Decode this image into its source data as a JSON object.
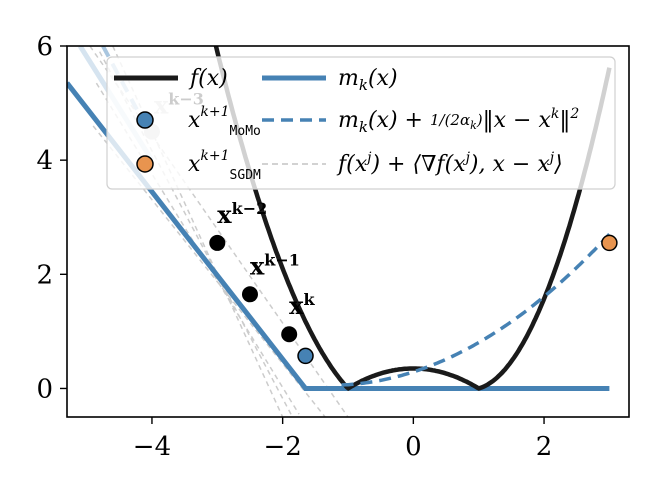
{
  "chart_data": {
    "type": "line",
    "xlim": [
      -5.3,
      3.3
    ],
    "ylim": [
      -0.5,
      6
    ],
    "x_ticks": [
      -4,
      -2,
      0,
      2
    ],
    "x_tick_labels": [
      "−4",
      "−2",
      "0",
      "2"
    ],
    "y_ticks": [
      0,
      2,
      4,
      6
    ],
    "y_tick_labels": [
      "0",
      "2",
      "4",
      "6"
    ],
    "grid": false,
    "legend_placement": "top-right",
    "colors": {
      "f": "#1a1a1a",
      "model": "#4682b4",
      "prox": "#4682b4",
      "tangent": "#cccccc",
      "momo": "#4682b4",
      "sgdm": "#e8944f"
    },
    "series": [
      {
        "name": "f(x)",
        "key": "f",
        "style": "solid"
      },
      {
        "name": "m_k(x)",
        "key": "model",
        "style": "solid"
      },
      {
        "name": "m_k(x) + 1/(2α_k)‖x − x^k‖²",
        "key": "prox",
        "style": "dashed"
      },
      {
        "name": "f(x^j) + ⟨∇f(x^j), x − x^j⟩",
        "key": "tangent",
        "style": "dashed"
      }
    ],
    "points": [
      {
        "label": "x^{k-3}",
        "x": -4.0,
        "y": 4.5,
        "faded": true
      },
      {
        "label": "x^{k-2}",
        "x": -3.0,
        "y": 2.55,
        "faded": false
      },
      {
        "label": "x^{k-1}",
        "x": -2.5,
        "y": 1.65,
        "faded": false
      },
      {
        "label": "x^k",
        "x": -1.9,
        "y": 0.95,
        "faded": false
      }
    ],
    "iterates": [
      {
        "name": "x^{k+1}_MoMo",
        "x": -1.65,
        "y": 0.57
      },
      {
        "name": "x^{k+1}_SGDM",
        "x": 3.0,
        "y": 2.55
      }
    ],
    "model_kink_x": -1.65,
    "f_max_between_minima": 0.35,
    "f_minima_x": [
      -1.0,
      1.0
    ]
  }
}
